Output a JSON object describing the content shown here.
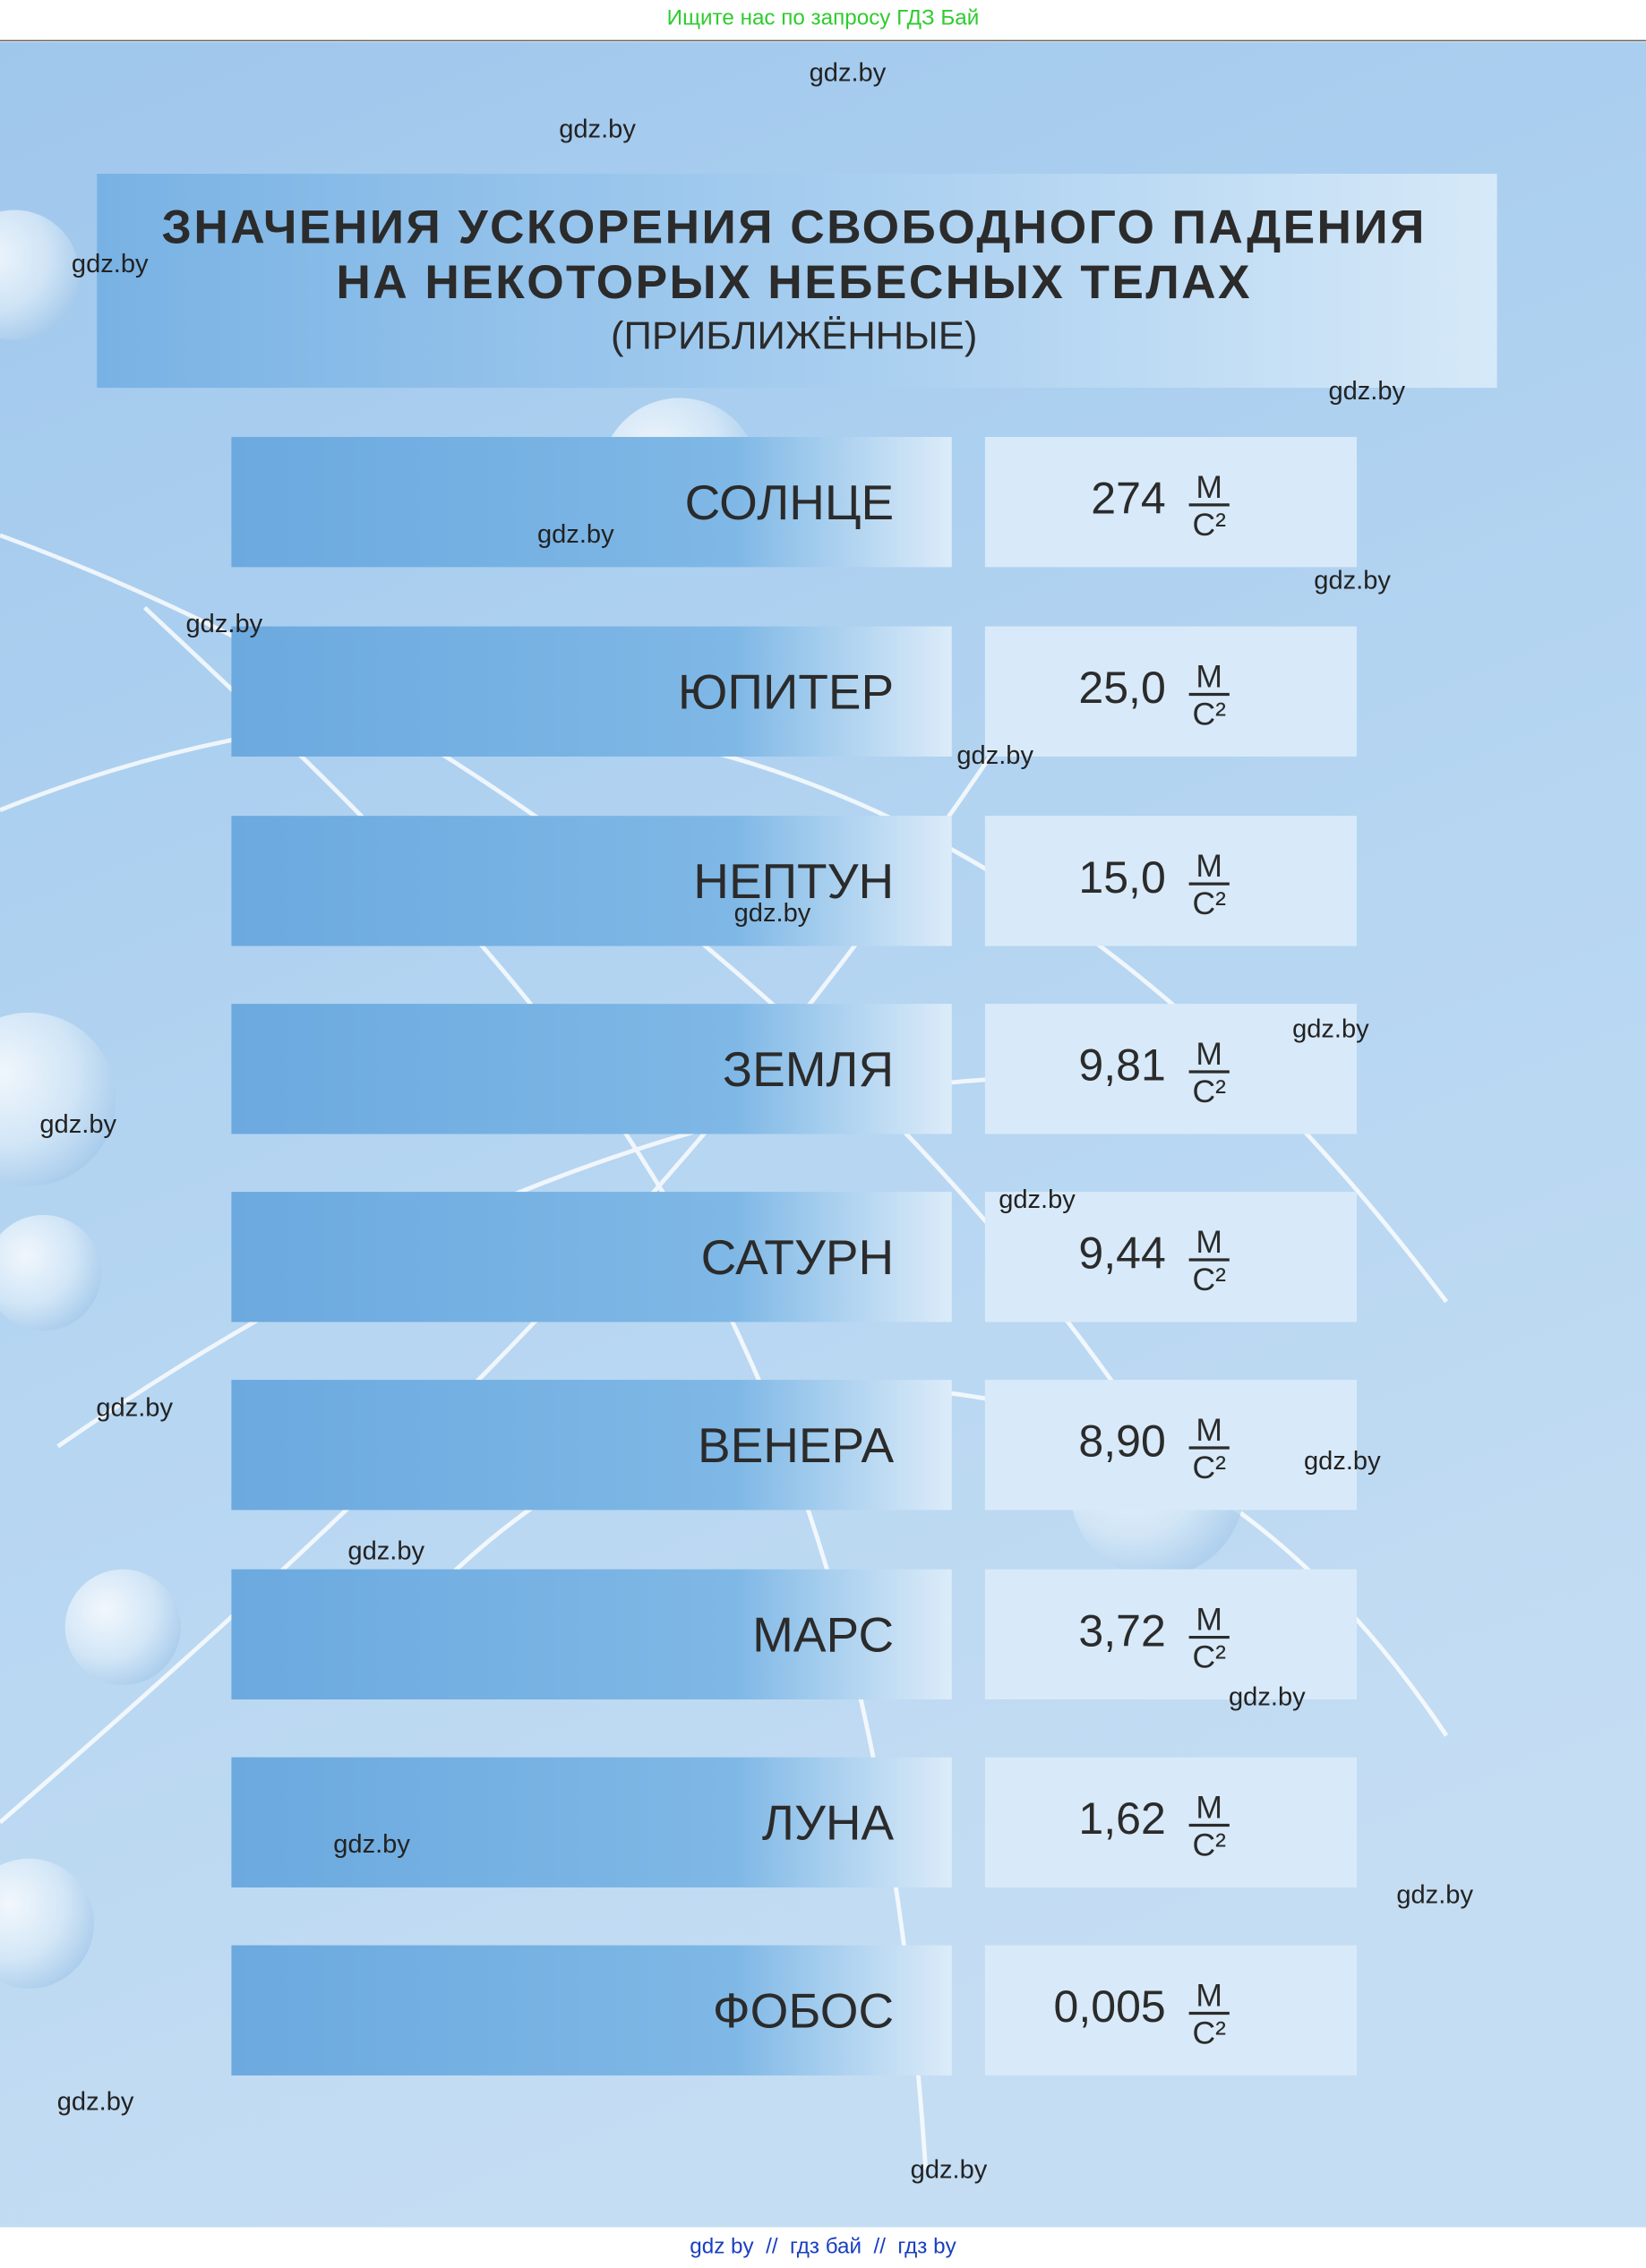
{
  "header": {
    "banner": "Ищите нас по запросу ГДЗ Бай"
  },
  "title": {
    "line1": "ЗНАЧЕНИЯ УСКОРЕНИЯ СВОБОДНОГО ПАДЕНИЯ",
    "line2": "НА НЕКОТОРЫХ НЕБЕСНЫХ ТЕЛАХ",
    "subtitle": "(ПРИБЛИЖЁННЫЕ)"
  },
  "table": {
    "unit": {
      "numerator": "М",
      "denominator": "С²"
    },
    "rows": [
      {
        "name": "СОЛНЦЕ",
        "value": "274"
      },
      {
        "name": "ЮПИТЕР",
        "value": "25,0"
      },
      {
        "name": "НЕПТУН",
        "value": "15,0"
      },
      {
        "name": "ЗЕМЛЯ",
        "value": "9,81"
      },
      {
        "name": "САТУРН",
        "value": "9,44"
      },
      {
        "name": "ВЕНЕРА",
        "value": "8,90"
      },
      {
        "name": "МАРС",
        "value": "3,72"
      },
      {
        "name": "ЛУНА",
        "value": "1,62"
      },
      {
        "name": "ФОБОС",
        "value": "0,005"
      }
    ]
  },
  "watermarks": [
    "gdz.by",
    "gdz.by",
    "gdz.by",
    "gdz.by",
    "gdz.by",
    "gdz.by",
    "gdz.by",
    "gdz.by",
    "gdz.by",
    "gdz.by",
    "gdz.by",
    "gdz.by",
    "gdz.by",
    "gdz.by",
    "gdz.by",
    "gdz.by",
    "gdz.by",
    "gdz.by",
    "gdz.by",
    "gdz.by"
  ],
  "footer": {
    "links": "gdz by  //  гдз бай  //  гдз by"
  }
}
